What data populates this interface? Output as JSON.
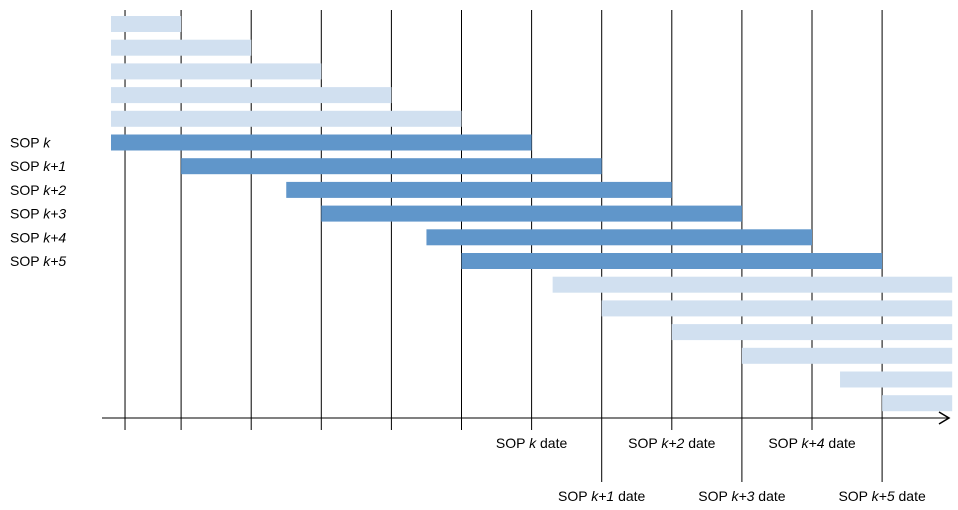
{
  "colors": {
    "active_bar": "#6096CA",
    "inactive_bar": "#D1E0F0",
    "line": "#000000"
  },
  "rows": [
    {
      "label": null,
      "active": false,
      "start": 0.0,
      "end": 1.0
    },
    {
      "label": null,
      "active": false,
      "start": 0.0,
      "end": 2.0
    },
    {
      "label": null,
      "active": false,
      "start": 0.0,
      "end": 3.0
    },
    {
      "label": null,
      "active": false,
      "start": 0.0,
      "end": 4.0
    },
    {
      "label": null,
      "active": false,
      "start": 0.0,
      "end": 5.0
    },
    {
      "label": {
        "prefix": "SOP ",
        "k": "k"
      },
      "active": true,
      "start": 0.0,
      "end": 6.0
    },
    {
      "label": {
        "prefix": "SOP ",
        "k": "k+1"
      },
      "active": true,
      "start": 1.0,
      "end": 7.0
    },
    {
      "label": {
        "prefix": "SOP ",
        "k": "k+2"
      },
      "active": true,
      "start": 2.5,
      "end": 8.0
    },
    {
      "label": {
        "prefix": "SOP ",
        "k": "k+3"
      },
      "active": true,
      "start": 3.0,
      "end": 9.0
    },
    {
      "label": {
        "prefix": "SOP ",
        "k": "k+4"
      },
      "active": true,
      "start": 4.5,
      "end": 10.0
    },
    {
      "label": {
        "prefix": "SOP ",
        "k": "k+5"
      },
      "active": true,
      "start": 5.0,
      "end": 11.0
    },
    {
      "label": null,
      "active": false,
      "start": 6.3,
      "end": 12.0
    },
    {
      "label": null,
      "active": false,
      "start": 7.0,
      "end": 12.0
    },
    {
      "label": null,
      "active": false,
      "start": 8.0,
      "end": 12.0
    },
    {
      "label": null,
      "active": false,
      "start": 9.0,
      "end": 12.0
    },
    {
      "label": null,
      "active": false,
      "start": 10.4,
      "end": 12.0
    },
    {
      "label": null,
      "active": false,
      "start": 11.0,
      "end": 12.0
    }
  ],
  "minor_ticks": [
    0.2,
    4.0,
    5.0
  ],
  "short_gridlines": [
    1.0,
    2.0,
    3.0
  ],
  "date_markers": [
    {
      "x": 6.0,
      "prefix": "SOP ",
      "k": "k",
      "suffix": " date",
      "level": "upper"
    },
    {
      "x": 7.0,
      "prefix": "SOP ",
      "k": "k+1",
      "suffix": " date",
      "level": "lower"
    },
    {
      "x": 8.0,
      "prefix": "SOP ",
      "k": "k+2",
      "suffix": " date",
      "level": "upper"
    },
    {
      "x": 9.0,
      "prefix": "SOP ",
      "k": "k+3",
      "suffix": " date",
      "level": "lower"
    },
    {
      "x": 10.0,
      "prefix": "SOP ",
      "k": "k+4",
      "suffix": " date",
      "level": "upper"
    },
    {
      "x": 11.0,
      "prefix": "SOP ",
      "k": "k+5",
      "suffix": " date",
      "level": "lower"
    }
  ]
}
